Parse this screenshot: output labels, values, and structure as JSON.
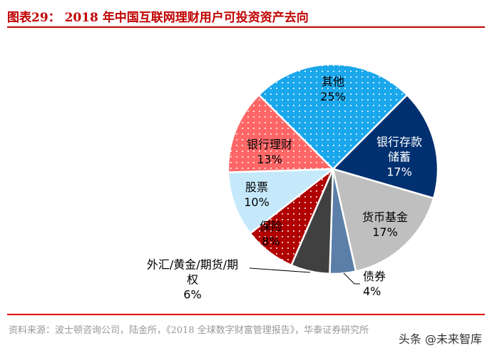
{
  "title": "图表29：  2018 年中国互联网理财用户可投资资产去向",
  "source": "资料来源：波士顿咨询公司，陆金所，《2018 全球数字财富管理报告》，华泰证券研究所",
  "watermark": "头条 @未来智库",
  "chart_data": {
    "type": "pie",
    "unit": "%",
    "slices": [
      {
        "label": "银行存款储蓄",
        "value": 17,
        "pct_label": "17%",
        "color": "#003070",
        "label_color": "#ffffff"
      },
      {
        "label": "货币基金",
        "value": 17,
        "pct_label": "17%",
        "color": "#bfbfbf",
        "label_color": "#000000"
      },
      {
        "label": "债券",
        "value": 4,
        "pct_label": "4%",
        "color": "#5b7fa8",
        "label_color": "#000000"
      },
      {
        "label": "外汇/黄金/期货/期权",
        "value": 6,
        "pct_label": "6%",
        "color": "#404040",
        "label_color": "#000000"
      },
      {
        "label": "保险",
        "value": 8,
        "pct_label": "8%",
        "color": "#b00000",
        "label_color": "#000000"
      },
      {
        "label": "股票",
        "value": 10,
        "pct_label": "10%",
        "color": "#c5e9fa",
        "label_color": "#000000"
      },
      {
        "label": "银行理财",
        "value": 13,
        "pct_label": "13%",
        "color": "#ff6666",
        "label_color": "#000000"
      },
      {
        "label": "其他",
        "value": 25,
        "pct_label": "25%",
        "color": "#1aa7ec",
        "label_color": "#000000"
      }
    ]
  }
}
